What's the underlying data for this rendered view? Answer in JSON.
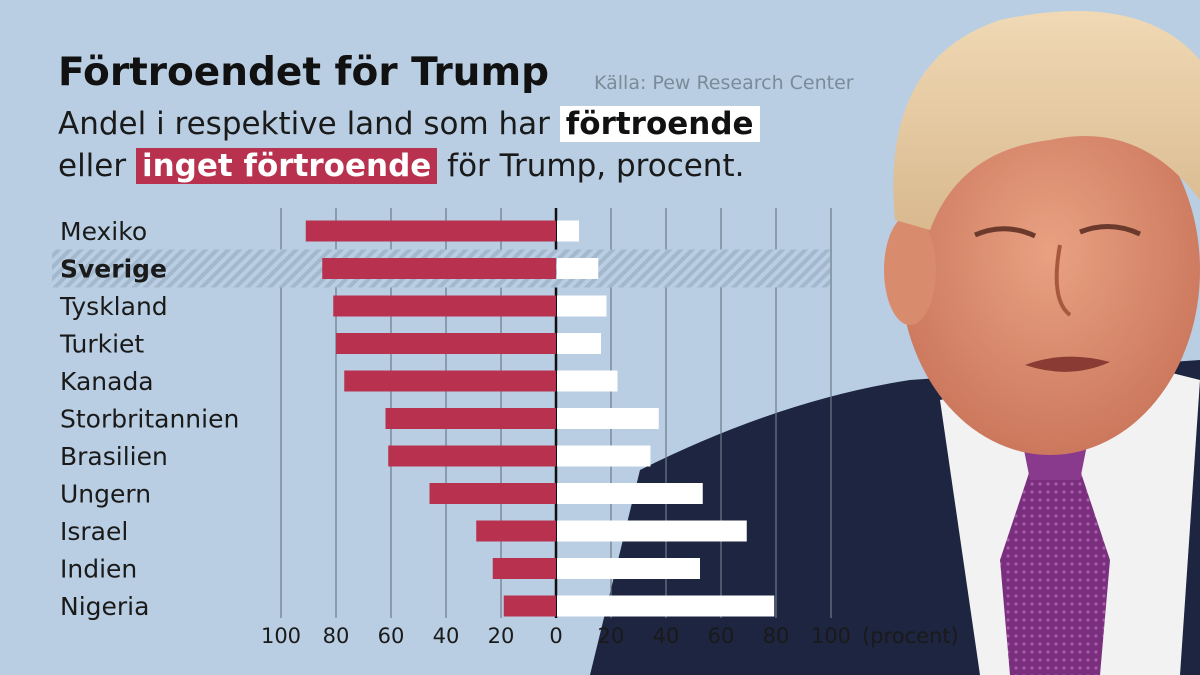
{
  "header": {
    "title": "Förtroendet för Trump",
    "source": "Källa: Pew Research Center",
    "subtitle_part1": "Andel i respektive land som har ",
    "subtitle_highlight1": "förtroende",
    "subtitle_part2": "eller ",
    "subtitle_highlight2": "inget förtroende",
    "subtitle_part3": " för Trump, procent."
  },
  "colors": {
    "background": "#b9cee3",
    "no_confidence": "#b8324f",
    "confidence": "#ffffff",
    "highlight_row": "#9fb3c8"
  },
  "chart_data": {
    "type": "bar",
    "orientation": "horizontal-diverging",
    "categories": [
      "Mexiko",
      "Sverige",
      "Tyskland",
      "Turkiet",
      "Kanada",
      "Storbritannien",
      "Brasilien",
      "Ungern",
      "Israel",
      "Indien",
      "Nigeria"
    ],
    "highlighted_category": "Sverige",
    "series": [
      {
        "values": [
          91,
          85,
          81,
          80,
          77,
          62,
          61,
          46,
          29,
          23,
          19
        ]
      },
      {
        "values": [
          8,
          15,
          18,
          16,
          22,
          37,
          34,
          53,
          69,
          52,
          79
        ]
      }
    ],
    "xticks": [
      "100",
      "80",
      "60",
      "40",
      "20",
      "0",
      "20",
      "40",
      "60",
      "80",
      "100"
    ],
    "xunit": "(procent)",
    "xlim": [
      -100,
      100
    ],
    "grid": true
  }
}
